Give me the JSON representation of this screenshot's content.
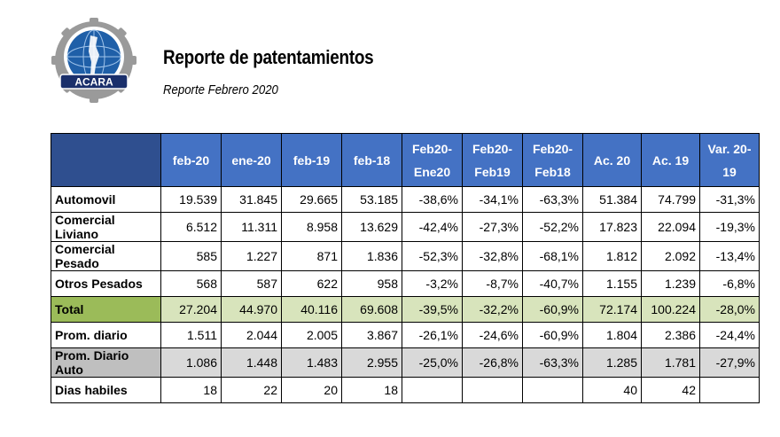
{
  "logo": {
    "text": "ACARA"
  },
  "header": {
    "title": "Reporte de patentamientos",
    "subtitle": "Reporte Febrero 2020"
  },
  "table": {
    "columns": [
      [
        "feb-20"
      ],
      [
        "ene-20"
      ],
      [
        "feb-19"
      ],
      [
        "feb-18"
      ],
      [
        "Feb20-",
        "Ene20"
      ],
      [
        "Feb20-",
        "Feb19"
      ],
      [
        "Feb20-",
        "Feb18"
      ],
      [
        "Ac. 20"
      ],
      [
        "Ac. 19"
      ],
      [
        "Var. 20-19"
      ]
    ],
    "rows": [
      {
        "label": "Automovil",
        "style": "normal",
        "values": [
          "19.539",
          "31.845",
          "29.665",
          "53.185",
          "-38,6%",
          "-34,1%",
          "-63,3%",
          "51.384",
          "74.799",
          "-31,3%"
        ]
      },
      {
        "label": "Comercial Liviano",
        "style": "normal",
        "values": [
          "6.512",
          "11.311",
          "8.958",
          "13.629",
          "-42,4%",
          "-27,3%",
          "-52,2%",
          "17.823",
          "22.094",
          "-19,3%"
        ]
      },
      {
        "label": "Comercial Pesado",
        "style": "normal",
        "values": [
          "585",
          "1.227",
          "871",
          "1.836",
          "-52,3%",
          "-32,8%",
          "-68,1%",
          "1.812",
          "2.092",
          "-13,4%"
        ]
      },
      {
        "label": "Otros Pesados",
        "style": "normal",
        "values": [
          "568",
          "587",
          "622",
          "958",
          "-3,2%",
          "-8,7%",
          "-40,7%",
          "1.155",
          "1.239",
          "-6,8%"
        ]
      },
      {
        "label": "Total",
        "style": "total",
        "values": [
          "27.204",
          "44.970",
          "40.116",
          "69.608",
          "-39,5%",
          "-32,2%",
          "-60,9%",
          "72.174",
          "100.224",
          "-28,0%"
        ]
      },
      {
        "label": "Prom. diario",
        "style": "normal",
        "values": [
          "1.511",
          "2.044",
          "2.005",
          "3.867",
          "-26,1%",
          "-24,6%",
          "-60,9%",
          "1.804",
          "2.386",
          "-24,4%"
        ]
      },
      {
        "label": "Prom. Diario Auto",
        "style": "grey",
        "values": [
          "1.086",
          "1.448",
          "1.483",
          "2.955",
          "-25,0%",
          "-26,8%",
          "-63,3%",
          "1.285",
          "1.781",
          "-27,9%"
        ]
      },
      {
        "label": "Dias habiles",
        "style": "normal",
        "values": [
          "18",
          "22",
          "20",
          "18",
          "",
          "",
          "",
          "40",
          "42",
          ""
        ]
      }
    ]
  }
}
